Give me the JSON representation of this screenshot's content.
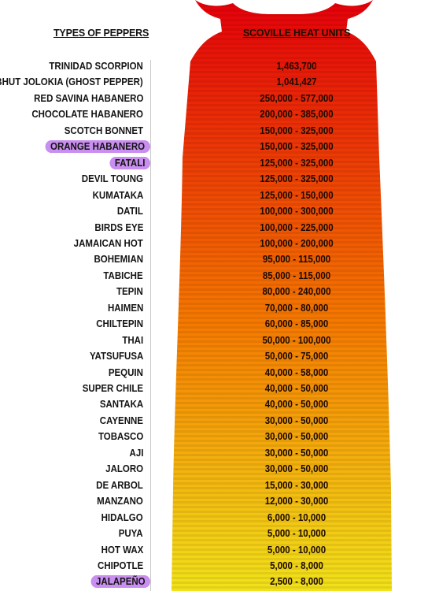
{
  "headers": {
    "left": "TYPES OF PEPPERS",
    "right": "SCOVILLE HEAT UNITS"
  },
  "colors": {
    "hot": "#e5000a",
    "warm": "#f57a00",
    "mild": "#f2e21a",
    "highlight": "#c98ef0"
  },
  "chart_data": {
    "type": "table",
    "title": "",
    "columns": [
      "TYPES OF PEPPERS",
      "SCOVILLE HEAT UNITS"
    ],
    "rows": [
      {
        "name": "TRINIDAD SCORPION",
        "shu": "1,463,700",
        "highlight": false
      },
      {
        "name": "BHUT JOLOKIA (GHOST PEPPER)",
        "shu": "1,041,427",
        "highlight": false
      },
      {
        "name": "RED SAVINA HABANERO",
        "shu": "250,000 - 577,000",
        "highlight": false
      },
      {
        "name": "CHOCOLATE HABANERO",
        "shu": "200,000 - 385,000",
        "highlight": false
      },
      {
        "name": "SCOTCH BONNET",
        "shu": "150,000 - 325,000",
        "highlight": false
      },
      {
        "name": "ORANGE HABANERO",
        "shu": "150,000 - 325,000",
        "highlight": true
      },
      {
        "name": "FATALI",
        "shu": "125,000 - 325,000",
        "highlight": true
      },
      {
        "name": "DEVIL TOUNG",
        "shu": "125,000 - 325,000",
        "highlight": false
      },
      {
        "name": "KUMATAKA",
        "shu": "125,000 - 150,000",
        "highlight": false
      },
      {
        "name": "DATIL",
        "shu": "100,000 - 300,000",
        "highlight": false
      },
      {
        "name": "BIRDS EYE",
        "shu": "100,000 - 225,000",
        "highlight": false
      },
      {
        "name": "JAMAICAN HOT",
        "shu": "100,000 - 200,000",
        "highlight": false
      },
      {
        "name": "BOHEMIAN",
        "shu": "95,000 - 115,000",
        "highlight": false
      },
      {
        "name": "TABICHE",
        "shu": "85,000 - 115,000",
        "highlight": false
      },
      {
        "name": "TEPIN",
        "shu": "80,000 - 240,000",
        "highlight": false
      },
      {
        "name": "HAIMEN",
        "shu": "70,000 - 80,000",
        "highlight": false
      },
      {
        "name": "CHILTEPIN",
        "shu": "60,000 - 85,000",
        "highlight": false
      },
      {
        "name": "THAI",
        "shu": "50,000 - 100,000",
        "highlight": false
      },
      {
        "name": "YATSUFUSA",
        "shu": "50,000 - 75,000",
        "highlight": false
      },
      {
        "name": "PEQUIN",
        "shu": "40,000 - 58,000",
        "highlight": false
      },
      {
        "name": "SUPER CHILE",
        "shu": "40,000 - 50,000",
        "highlight": false
      },
      {
        "name": "SANTAKA",
        "shu": "40,000 - 50,000",
        "highlight": false
      },
      {
        "name": "CAYENNE",
        "shu": "30,000 - 50,000",
        "highlight": false
      },
      {
        "name": "TOBASCO",
        "shu": "30,000 - 50,000",
        "highlight": false
      },
      {
        "name": "AJI",
        "shu": "30,000 - 50,000",
        "highlight": false
      },
      {
        "name": "JALORO",
        "shu": "30,000 - 50,000",
        "highlight": false
      },
      {
        "name": "DE ARBOL",
        "shu": "15,000 - 30,000",
        "highlight": false
      },
      {
        "name": "MANZANO",
        "shu": "12,000 - 30,000",
        "highlight": false
      },
      {
        "name": "HIDALGO",
        "shu": "6,000 - 10,000",
        "highlight": false
      },
      {
        "name": "PUYA",
        "shu": "5,000 - 10,000",
        "highlight": false
      },
      {
        "name": "HOT WAX",
        "shu": "5,000 - 10,000",
        "highlight": false
      },
      {
        "name": "CHIPOTLE",
        "shu": "5,000 - 8,000",
        "highlight": false
      },
      {
        "name": "JALAPEÑO",
        "shu": "2,500 - 8,000",
        "highlight": true
      }
    ]
  }
}
